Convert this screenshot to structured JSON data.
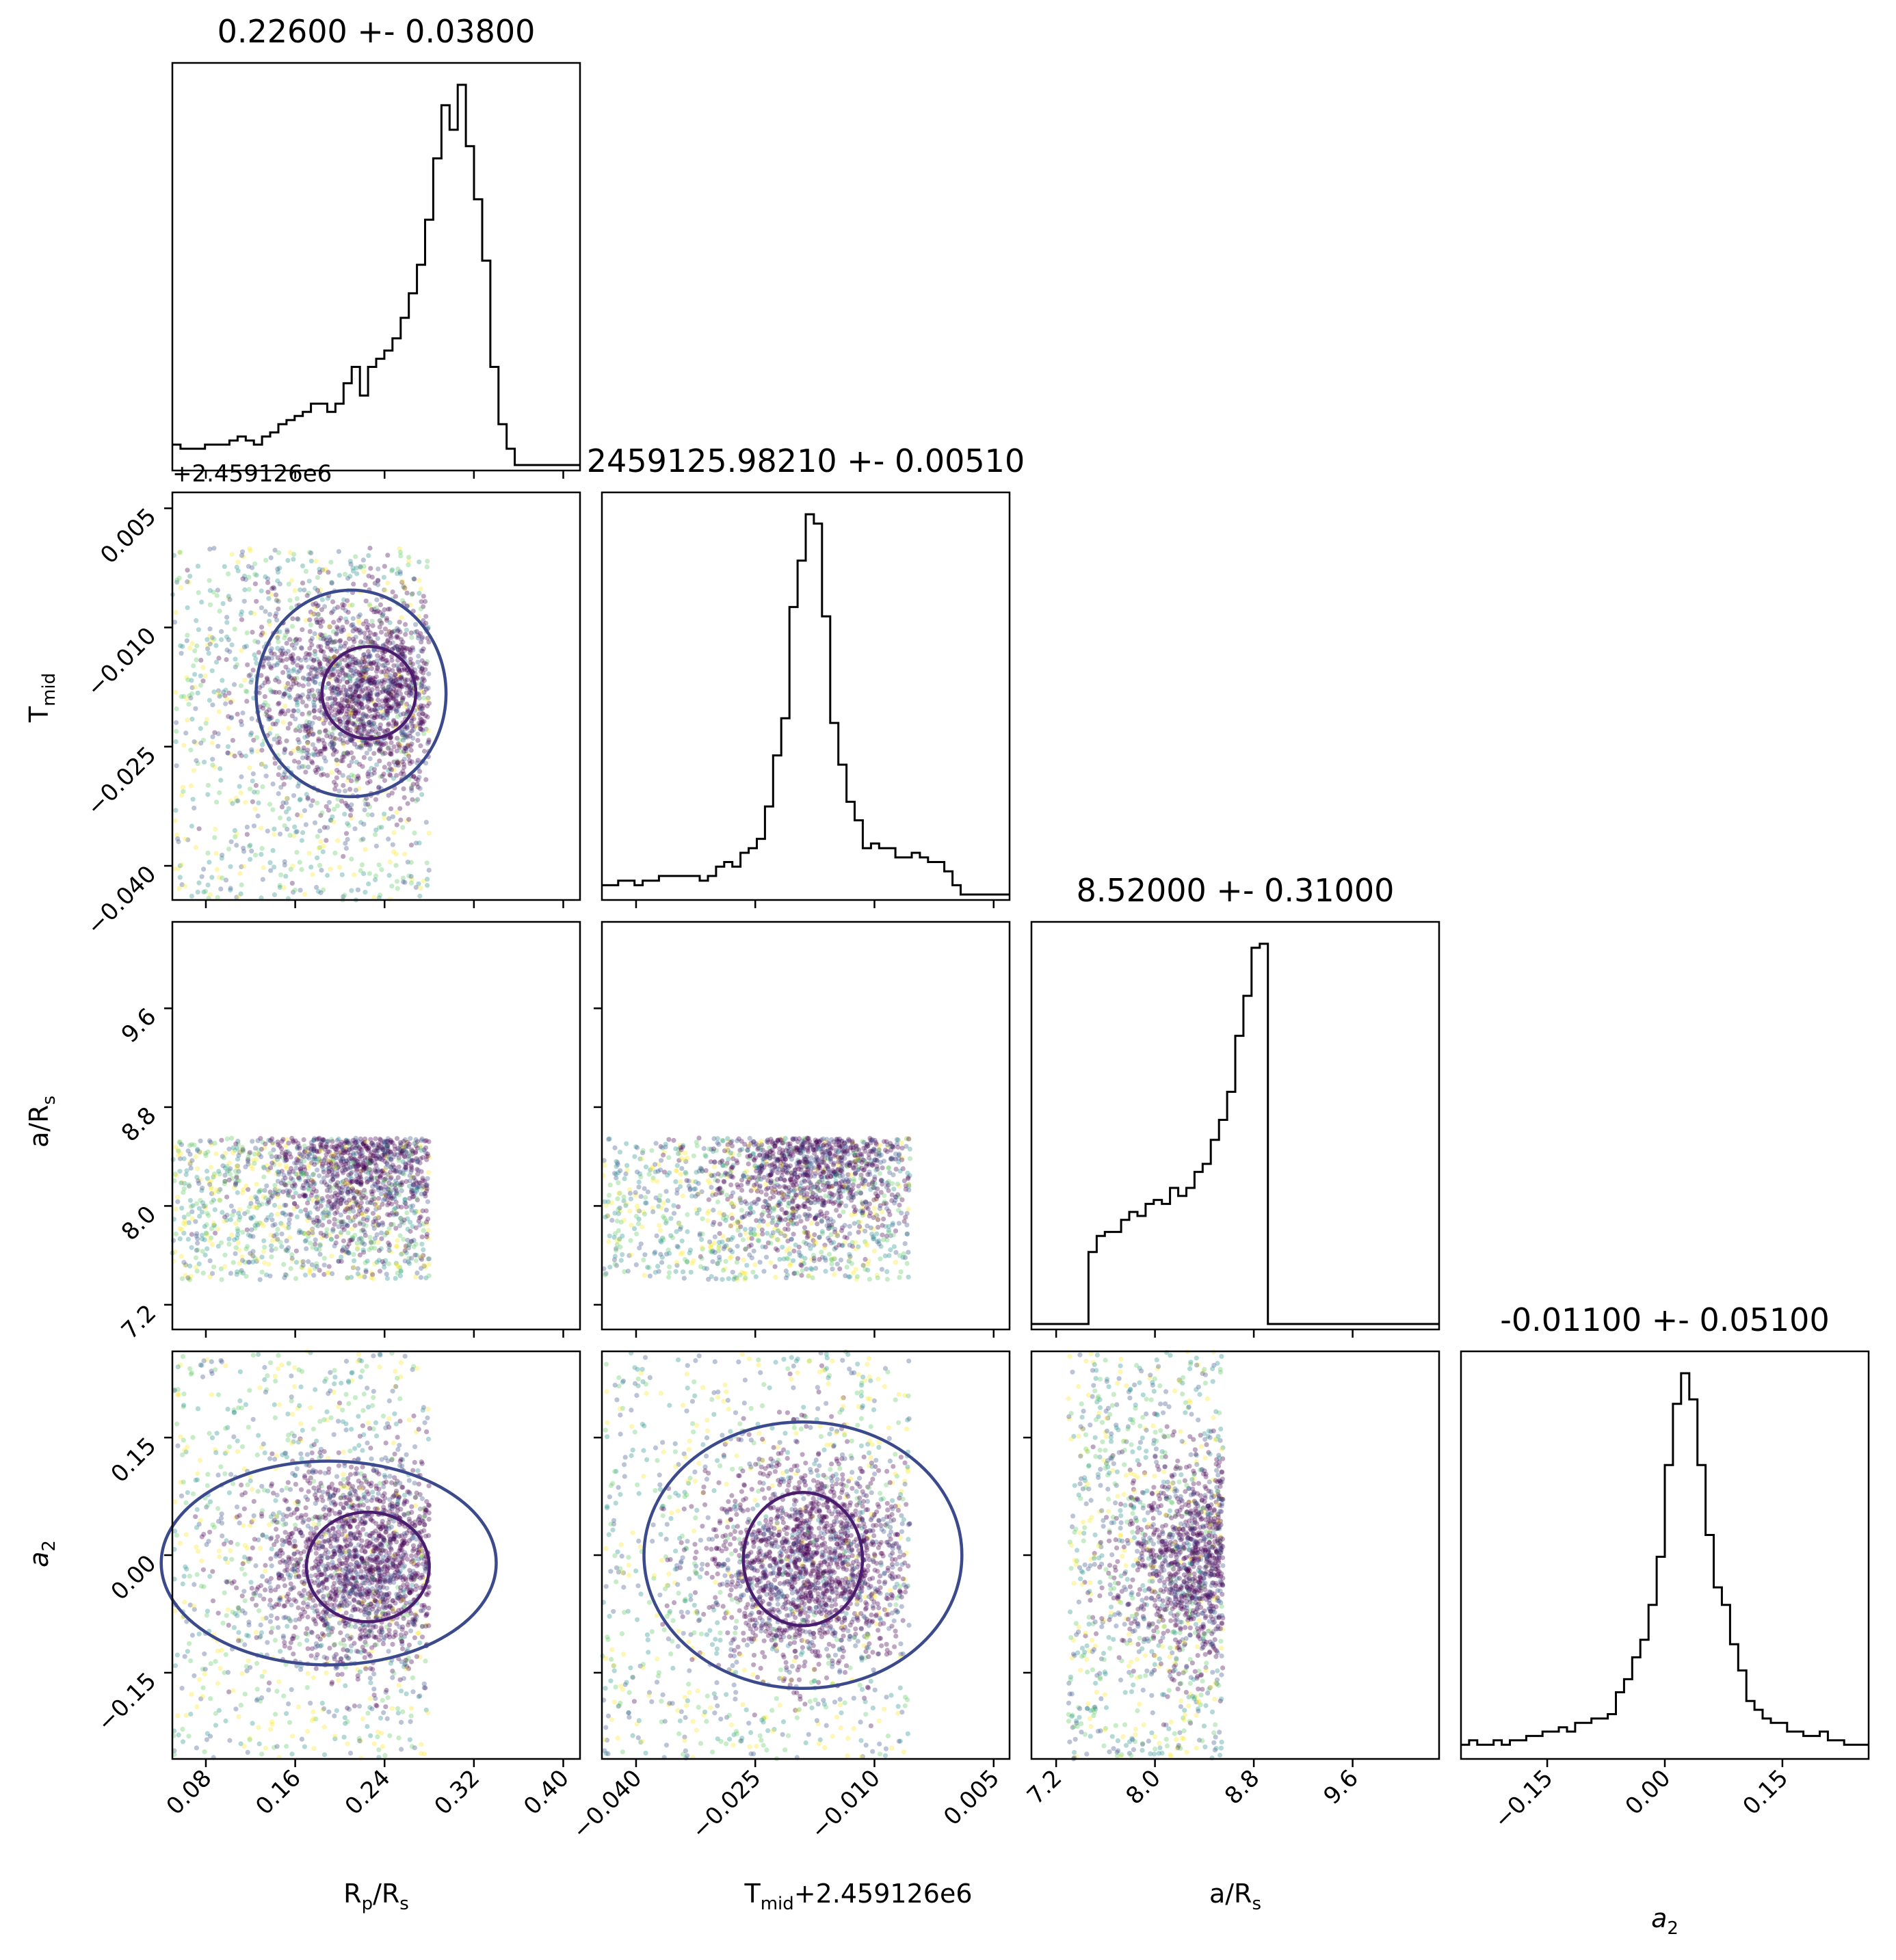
{
  "chart_data": {
    "type": "corner",
    "parameters": [
      {
        "key": "rprs",
        "label": "R_p/R_s",
        "label_base": "R",
        "label_sub1": "p",
        "label_rest": "/R",
        "label_sub2": "s",
        "title": "0.22600 +- 0.03800",
        "range": [
          0.05,
          0.415
        ],
        "ticks": [
          "0.08",
          "0.16",
          "0.24",
          "0.32",
          "0.40"
        ],
        "tick_values": [
          0.08,
          0.16,
          0.24,
          0.32,
          0.4
        ]
      },
      {
        "key": "tmid",
        "label": "T_mid",
        "label_base": "T",
        "label_sub1": "mid",
        "offset_text": "+2.459126e6",
        "title": "2459125.98210 +- 0.00510",
        "range": [
          -0.0443,
          0.007
        ],
        "ticks": [
          "−0.040",
          "−0.025",
          "−0.010",
          "0.005"
        ],
        "tick_values": [
          -0.04,
          -0.025,
          -0.01,
          0.005
        ]
      },
      {
        "key": "ars",
        "label": "a/R_s",
        "label_base": "a/R",
        "label_sub1": "s",
        "title": "8.52000 +- 0.31000",
        "range": [
          7.0,
          10.3
        ],
        "ticks": [
          "7.2",
          "8.0",
          "8.8",
          "9.6"
        ],
        "tick_values": [
          7.2,
          8.0,
          8.8,
          9.6
        ]
      },
      {
        "key": "a2",
        "label": "a_2",
        "label_base": "a",
        "label_sub1": "2",
        "title": "-0.01100 +- 0.05100",
        "range": [
          -0.26,
          0.26
        ],
        "ticks": [
          "−0.15",
          "0.00",
          "0.15"
        ],
        "tick_values": [
          -0.15,
          0.0,
          0.15
        ]
      }
    ],
    "axis_labels": {
      "rprs": "R_p/R_s",
      "tmid_x": "T_mid+2.459126e6",
      "ars": "a/R_s",
      "a2": "a_2"
    },
    "histograms": {
      "rprs": {
        "min": 0.05,
        "max": 0.415,
        "heights": [
          5,
          4,
          4,
          4,
          5,
          5,
          5,
          6,
          7,
          6,
          5,
          7,
          8,
          10,
          11,
          12,
          13,
          15,
          15,
          13,
          15,
          20,
          24,
          17,
          24,
          26,
          28,
          31,
          36,
          42,
          49,
          60,
          75,
          88,
          82,
          93,
          78,
          65,
          50,
          24,
          10,
          4,
          0,
          0,
          0,
          0,
          0,
          0,
          0,
          0
        ]
      },
      "tmid": {
        "min": -0.0443,
        "max": 0.007,
        "heights": [
          2,
          2,
          3,
          3,
          2,
          3,
          3,
          4,
          4,
          4,
          4,
          4,
          3,
          4,
          6,
          7,
          6,
          9,
          10,
          12,
          19,
          30,
          38,
          62,
          72,
          82,
          80,
          60,
          37,
          28,
          20,
          16,
          10,
          11,
          10,
          10,
          8,
          8,
          9,
          8,
          7,
          7,
          5,
          2,
          0,
          0,
          0,
          0,
          0,
          0
        ]
      },
      "ars": {
        "min": 7.0,
        "max": 10.3,
        "heights": [
          0,
          0,
          0,
          0,
          0,
          0,
          0,
          18,
          22,
          23,
          23,
          26,
          28,
          27,
          30,
          31,
          30,
          34,
          32,
          34,
          38,
          40,
          46,
          51,
          58,
          72,
          82,
          94,
          95,
          0,
          0,
          0,
          0,
          0,
          0,
          0,
          0,
          0,
          0,
          0,
          0,
          0,
          0,
          0,
          0,
          0,
          0,
          0,
          0,
          0
        ]
      },
      "a2": {
        "min": -0.26,
        "max": 0.26,
        "heights": [
          2,
          3,
          2,
          2,
          3,
          2,
          3,
          3,
          4,
          4,
          5,
          5,
          6,
          5,
          7,
          7,
          8,
          8,
          9,
          14,
          17,
          22,
          26,
          34,
          45,
          66,
          80,
          87,
          81,
          66,
          50,
          38,
          34,
          25,
          19,
          12,
          10,
          8,
          7,
          7,
          5,
          5,
          4,
          4,
          5,
          3,
          3,
          2,
          2,
          2
        ]
      }
    },
    "sample_clouds": [
      {
        "x": "rprs",
        "y": "tmid",
        "x_extent": [
          0.05,
          0.28
        ],
        "y_extent": [
          -0.0443,
          0.0
        ],
        "mean": [
          0.226,
          -0.0182
        ],
        "sd": [
          0.038,
          0.0051
        ],
        "contours": {
          "inner": {
            "cx": 0.226,
            "cy": -0.0182,
            "rx": 0.042,
            "ry": 0.0058
          },
          "outer": {
            "cx": 0.21,
            "cy": -0.0183,
            "rx": 0.085,
            "ry": 0.013
          }
        }
      },
      {
        "x": "rprs",
        "y": "ars",
        "x_extent": [
          0.05,
          0.28
        ],
        "y_extent": [
          7.4,
          8.55
        ],
        "mean": [
          0.226,
          8.52
        ],
        "sd": [
          0.038,
          0.31
        ]
      },
      {
        "x": "tmid",
        "y": "ars",
        "x_extent": [
          -0.0443,
          -0.0055
        ],
        "y_extent": [
          7.4,
          8.55
        ],
        "mean": [
          -0.0182,
          8.52
        ],
        "sd": [
          0.0051,
          0.31
        ]
      },
      {
        "x": "rprs",
        "y": "a2",
        "x_extent": [
          0.05,
          0.28
        ],
        "y_extent": [
          -0.26,
          0.26
        ],
        "mean": [
          0.226,
          -0.011
        ],
        "sd": [
          0.038,
          0.051
        ],
        "contours": {
          "inner": {
            "cx": 0.225,
            "cy": -0.015,
            "rx": 0.055,
            "ry": 0.07
          },
          "outer": {
            "cx": 0.19,
            "cy": -0.01,
            "rx": 0.15,
            "ry": 0.13
          }
        }
      },
      {
        "x": "tmid",
        "y": "a2",
        "x_extent": [
          -0.0443,
          -0.0055
        ],
        "y_extent": [
          -0.26,
          0.26
        ],
        "mean": [
          -0.0182,
          -0.011
        ],
        "sd": [
          0.0051,
          0.051
        ],
        "contours": {
          "inner": {
            "cx": -0.019,
            "cy": -0.005,
            "rx": 0.0075,
            "ry": 0.085
          },
          "outer": {
            "cx": -0.019,
            "cy": 0.0,
            "rx": 0.02,
            "ry": 0.17
          }
        }
      },
      {
        "x": "ars",
        "y": "a2",
        "x_extent": [
          7.3,
          8.55
        ],
        "y_extent": [
          -0.26,
          0.26
        ],
        "mean": [
          8.52,
          -0.011
        ],
        "sd": [
          0.31,
          0.051
        ]
      }
    ],
    "grid": false,
    "colors": {
      "scatter": [
        "#440154",
        "#3b528b",
        "#21918c",
        "#5ec962",
        "#fde725"
      ],
      "contour_inner": "#4a1d6e",
      "contour_outer": "#3b4a8c",
      "hist": "#000000"
    }
  }
}
